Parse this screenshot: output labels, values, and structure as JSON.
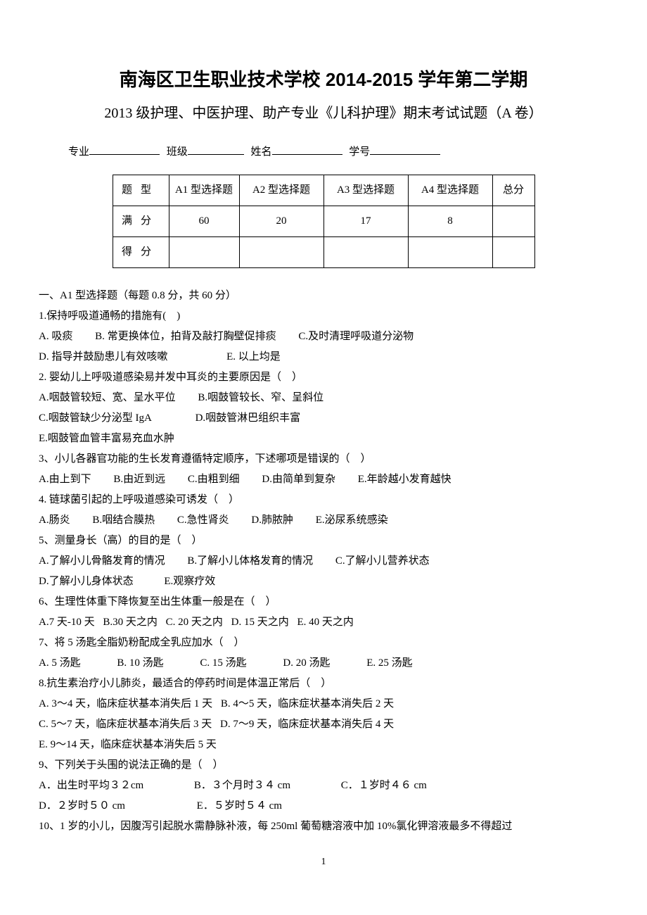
{
  "header": {
    "title": "南海区卫生职业技术学校 2014-2015 学年第二学期",
    "subtitle": "2013 级护理、中医护理、助产专业《儿科护理》期末考试试题（A 卷）"
  },
  "info": {
    "major_label": "专业",
    "class_label": "班级",
    "name_label": "姓名",
    "id_label": "学号"
  },
  "score_table": {
    "row_labels": [
      "题型",
      "满分",
      "得分"
    ],
    "columns": [
      "A1 型选择题",
      "A2 型选择题",
      "A3 型选择题",
      "A4 型选择题",
      "总分"
    ],
    "full_marks": [
      "60",
      "20",
      "17",
      "8",
      ""
    ],
    "scores": [
      "",
      "",
      "",
      "",
      ""
    ]
  },
  "section1": {
    "header": "一、A1 型选择题（每题 0.8 分，共 60 分）"
  },
  "q1": {
    "stem": "1.保持呼吸道通畅的措施有(　)",
    "a": "A. 吸痰",
    "b": "B. 常更换体位，拍背及敲打胸壁促排痰",
    "c": "C.及时清理呼吸道分泌物",
    "d": "D. 指导并鼓励患儿有效咳嗽",
    "e": "E. 以上均是"
  },
  "q2": {
    "stem": "2. 婴幼儿上呼吸道感染易并发中耳炎的主要原因是（　）",
    "a": "A.咽鼓管较短、宽、呈水平位",
    "b": "B.咽鼓管较长、窄、呈斜位",
    "c": "C.咽鼓管缺少分泌型 IgA",
    "d": "D.咽鼓管淋巴组织丰富",
    "e": "E.咽鼓管血管丰富易充血水肿"
  },
  "q3": {
    "stem": "3、小儿各器官功能的生长发育遵循特定顺序，下述哪项是错误的（　）",
    "a": "A.由上到下",
    "b": "B.由近到远",
    "c": "C.由粗到细",
    "d": "D.由简单到复杂",
    "e": "E.年龄越小发育越快"
  },
  "q4": {
    "stem": "4. 链球菌引起的上呼吸道感染可诱发（　）",
    "a": "A.肠炎",
    "b": "B.咽结合膜热",
    "c": "C.急性肾炎",
    "d": "D.肺脓肿",
    "e": "E.泌尿系统感染"
  },
  "q5": {
    "stem": "5、测量身长（高）的目的是（　）",
    "a": "A.了解小儿骨骼发育的情况",
    "b": "B.了解小儿体格发育的情况",
    "c": "C.了解小儿营养状态",
    "d": "D.了解小儿身体状态",
    "e": "E.观察疗效"
  },
  "q6": {
    "stem": "6、生理性体重下降恢复至出生体重一般是在（　）",
    "a": "A.7 天-10 天",
    "b": "B.30 天之内",
    "c": "C. 20 天之内",
    "d": "D. 15 天之内",
    "e": "E. 40 天之内"
  },
  "q7": {
    "stem": "7、将 5 汤匙全脂奶粉配成全乳应加水（　）",
    "a": "A. 5 汤匙",
    "b": "B. 10 汤匙",
    "c": "C. 15 汤匙",
    "d": "D. 20 汤匙",
    "e": "E. 25 汤匙"
  },
  "q8": {
    "stem": "8.抗生素治疗小儿肺炎，最适合的停药时间是体温正常后（　）",
    "a": "A. 3～4 天，临床症状基本消失后 1 天",
    "b": "B. 4～5 天，临床症状基本消失后 2 天",
    "c": "C. 5～7 天，临床症状基本消失后 3 天",
    "d": "D. 7～9 天，临床症状基本消失后 4 天",
    "e": "E. 9～14 天，临床症状基本消失后 5 天"
  },
  "q9": {
    "stem": "9、下列关于头围的说法正确的是（　）",
    "a": "A．出生时平均３２cm",
    "b": "B．３个月时３４ cm",
    "c": "C．１岁时４６ cm",
    "d": "D．２岁时５０ cm",
    "e": "E．５岁时５４ cm"
  },
  "q10": {
    "stem": "10、1 岁的小儿，因腹泻引起脱水需静脉补液，每 250ml 葡萄糖溶液中加 10%氯化钾溶液最多不得超过"
  },
  "page_number": "1"
}
